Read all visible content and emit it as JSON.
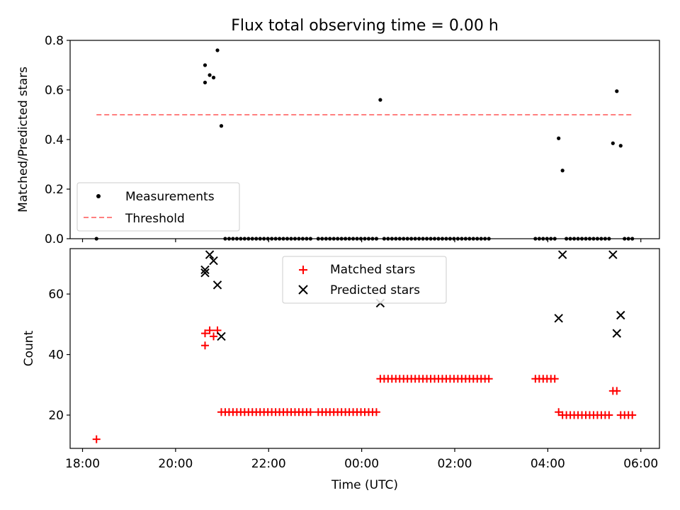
{
  "chart_data": [
    {
      "type": "scatter",
      "title": "Flux total observing time = 0.00 h",
      "ylabel": "Matched/Predicted stars",
      "xlabel": "",
      "ylim": [
        0,
        0.8
      ],
      "yticks": [
        "0.0",
        "0.2",
        "0.4",
        "0.6",
        "0.8"
      ],
      "legend_position": "lower-left",
      "grid": false,
      "series": [
        {
          "name": "Measurements",
          "style": "dot",
          "color": "#000000",
          "points": [
            [
              "18:18",
              0.0
            ],
            [
              "20:38",
              0.7
            ],
            [
              "20:38",
              0.63
            ],
            [
              "20:44",
              0.66
            ],
            [
              "20:49",
              0.65
            ],
            [
              "20:54",
              0.76
            ],
            [
              "20:59",
              0.455
            ],
            [
              "21:04",
              0.0
            ],
            [
              "21:09",
              0.0
            ],
            [
              "21:14",
              0.0
            ],
            [
              "21:19",
              0.0
            ],
            [
              "21:24",
              0.0
            ],
            [
              "21:29",
              0.0
            ],
            [
              "21:34",
              0.0
            ],
            [
              "21:39",
              0.0
            ],
            [
              "21:44",
              0.0
            ],
            [
              "21:49",
              0.0
            ],
            [
              "21:54",
              0.0
            ],
            [
              "21:59",
              0.0
            ],
            [
              "22:04",
              0.0
            ],
            [
              "22:09",
              0.0
            ],
            [
              "22:14",
              0.0
            ],
            [
              "22:19",
              0.0
            ],
            [
              "22:24",
              0.0
            ],
            [
              "22:29",
              0.0
            ],
            [
              "22:34",
              0.0
            ],
            [
              "22:39",
              0.0
            ],
            [
              "22:44",
              0.0
            ],
            [
              "22:49",
              0.0
            ],
            [
              "22:54",
              0.0
            ],
            [
              "23:04",
              0.0
            ],
            [
              "23:09",
              0.0
            ],
            [
              "23:14",
              0.0
            ],
            [
              "23:19",
              0.0
            ],
            [
              "23:24",
              0.0
            ],
            [
              "23:29",
              0.0
            ],
            [
              "23:34",
              0.0
            ],
            [
              "23:39",
              0.0
            ],
            [
              "23:44",
              0.0
            ],
            [
              "23:49",
              0.0
            ],
            [
              "23:54",
              0.0
            ],
            [
              "23:59",
              0.0
            ],
            [
              "00:04",
              0.0
            ],
            [
              "00:09",
              0.0
            ],
            [
              "00:14",
              0.0
            ],
            [
              "00:19",
              0.0
            ],
            [
              "00:24",
              0.56
            ],
            [
              "00:29",
              0.0
            ],
            [
              "00:34",
              0.0
            ],
            [
              "00:39",
              0.0
            ],
            [
              "00:44",
              0.0
            ],
            [
              "00:49",
              0.0
            ],
            [
              "00:54",
              0.0
            ],
            [
              "00:59",
              0.0
            ],
            [
              "01:04",
              0.0
            ],
            [
              "01:09",
              0.0
            ],
            [
              "01:14",
              0.0
            ],
            [
              "01:19",
              0.0
            ],
            [
              "01:24",
              0.0
            ],
            [
              "01:29",
              0.0
            ],
            [
              "01:34",
              0.0
            ],
            [
              "01:39",
              0.0
            ],
            [
              "01:44",
              0.0
            ],
            [
              "01:49",
              0.0
            ],
            [
              "01:54",
              0.0
            ],
            [
              "01:59",
              0.0
            ],
            [
              "02:04",
              0.0
            ],
            [
              "02:09",
              0.0
            ],
            [
              "02:14",
              0.0
            ],
            [
              "02:19",
              0.0
            ],
            [
              "02:24",
              0.0
            ],
            [
              "02:29",
              0.0
            ],
            [
              "02:34",
              0.0
            ],
            [
              "02:39",
              0.0
            ],
            [
              "02:44",
              0.0
            ],
            [
              "03:44",
              0.0
            ],
            [
              "03:49",
              0.0
            ],
            [
              "03:54",
              0.0
            ],
            [
              "03:59",
              0.0
            ],
            [
              "04:04",
              0.0
            ],
            [
              "04:09",
              0.0
            ],
            [
              "04:14",
              0.405
            ],
            [
              "04:19",
              0.275
            ],
            [
              "04:24",
              0.0
            ],
            [
              "04:29",
              0.0
            ],
            [
              "04:34",
              0.0
            ],
            [
              "04:39",
              0.0
            ],
            [
              "04:44",
              0.0
            ],
            [
              "04:49",
              0.0
            ],
            [
              "04:54",
              0.0
            ],
            [
              "04:59",
              0.0
            ],
            [
              "05:04",
              0.0
            ],
            [
              "05:09",
              0.0
            ],
            [
              "05:14",
              0.0
            ],
            [
              "05:19",
              0.0
            ],
            [
              "05:24",
              0.385
            ],
            [
              "05:29",
              0.595
            ],
            [
              "05:34",
              0.375
            ],
            [
              "05:39",
              0.0
            ],
            [
              "05:44",
              0.0
            ],
            [
              "05:49",
              0.0
            ]
          ]
        },
        {
          "name": "Threshold",
          "style": "dashed-line",
          "color": "#ff7f7f",
          "points": [
            [
              "18:18",
              0.5
            ],
            [
              "05:49",
              0.5
            ]
          ]
        }
      ]
    },
    {
      "type": "scatter",
      "title": "",
      "ylabel": "Count",
      "xlabel": "Time (UTC)",
      "ylim": [
        9,
        75
      ],
      "yticks": [
        "20",
        "40",
        "60"
      ],
      "xticks": [
        "18:00",
        "20:00",
        "22:00",
        "00:00",
        "02:00",
        "04:00",
        "06:00"
      ],
      "xlim": [
        "17:44",
        "06:24"
      ],
      "legend_position": "upper-center",
      "grid": false,
      "series": [
        {
          "name": "Matched stars",
          "marker": "plus",
          "color": "#ff0000",
          "points": [
            [
              "18:18",
              12
            ],
            [
              "20:38",
              47
            ],
            [
              "20:38",
              43
            ],
            [
              "20:44",
              48
            ],
            [
              "20:49",
              46
            ],
            [
              "20:54",
              48
            ],
            [
              "20:59",
              21
            ],
            [
              "21:04",
              21
            ],
            [
              "21:09",
              21
            ],
            [
              "21:14",
              21
            ],
            [
              "21:19",
              21
            ],
            [
              "21:24",
              21
            ],
            [
              "21:29",
              21
            ],
            [
              "21:34",
              21
            ],
            [
              "21:39",
              21
            ],
            [
              "21:44",
              21
            ],
            [
              "21:49",
              21
            ],
            [
              "21:54",
              21
            ],
            [
              "21:59",
              21
            ],
            [
              "22:04",
              21
            ],
            [
              "22:09",
              21
            ],
            [
              "22:14",
              21
            ],
            [
              "22:19",
              21
            ],
            [
              "22:24",
              21
            ],
            [
              "22:29",
              21
            ],
            [
              "22:34",
              21
            ],
            [
              "22:39",
              21
            ],
            [
              "22:44",
              21
            ],
            [
              "22:49",
              21
            ],
            [
              "22:54",
              21
            ],
            [
              "23:04",
              21
            ],
            [
              "23:09",
              21
            ],
            [
              "23:14",
              21
            ],
            [
              "23:19",
              21
            ],
            [
              "23:24",
              21
            ],
            [
              "23:29",
              21
            ],
            [
              "23:34",
              21
            ],
            [
              "23:39",
              21
            ],
            [
              "23:44",
              21
            ],
            [
              "23:49",
              21
            ],
            [
              "23:54",
              21
            ],
            [
              "23:59",
              21
            ],
            [
              "00:04",
              21
            ],
            [
              "00:09",
              21
            ],
            [
              "00:14",
              21
            ],
            [
              "00:19",
              21
            ],
            [
              "00:24",
              32
            ],
            [
              "00:29",
              32
            ],
            [
              "00:34",
              32
            ],
            [
              "00:39",
              32
            ],
            [
              "00:44",
              32
            ],
            [
              "00:49",
              32
            ],
            [
              "00:54",
              32
            ],
            [
              "00:59",
              32
            ],
            [
              "01:04",
              32
            ],
            [
              "01:09",
              32
            ],
            [
              "01:14",
              32
            ],
            [
              "01:19",
              32
            ],
            [
              "01:24",
              32
            ],
            [
              "01:29",
              32
            ],
            [
              "01:34",
              32
            ],
            [
              "01:39",
              32
            ],
            [
              "01:44",
              32
            ],
            [
              "01:49",
              32
            ],
            [
              "01:54",
              32
            ],
            [
              "01:59",
              32
            ],
            [
              "02:04",
              32
            ],
            [
              "02:09",
              32
            ],
            [
              "02:14",
              32
            ],
            [
              "02:19",
              32
            ],
            [
              "02:24",
              32
            ],
            [
              "02:29",
              32
            ],
            [
              "02:34",
              32
            ],
            [
              "02:39",
              32
            ],
            [
              "02:44",
              32
            ],
            [
              "03:44",
              32
            ],
            [
              "03:49",
              32
            ],
            [
              "03:54",
              32
            ],
            [
              "03:59",
              32
            ],
            [
              "04:04",
              32
            ],
            [
              "04:09",
              32
            ],
            [
              "04:14",
              21
            ],
            [
              "04:19",
              20
            ],
            [
              "04:24",
              20
            ],
            [
              "04:29",
              20
            ],
            [
              "04:34",
              20
            ],
            [
              "04:39",
              20
            ],
            [
              "04:44",
              20
            ],
            [
              "04:49",
              20
            ],
            [
              "04:54",
              20
            ],
            [
              "04:59",
              20
            ],
            [
              "05:04",
              20
            ],
            [
              "05:09",
              20
            ],
            [
              "05:14",
              20
            ],
            [
              "05:19",
              20
            ],
            [
              "05:24",
              28
            ],
            [
              "05:29",
              28
            ],
            [
              "05:34",
              20
            ],
            [
              "05:39",
              20
            ],
            [
              "05:44",
              20
            ],
            [
              "05:49",
              20
            ]
          ]
        },
        {
          "name": "Predicted stars",
          "marker": "x",
          "color": "#000000",
          "points": [
            [
              "20:38",
              68
            ],
            [
              "20:38",
              67
            ],
            [
              "20:44",
              73
            ],
            [
              "20:49",
              71
            ],
            [
              "20:54",
              63
            ],
            [
              "20:59",
              46
            ],
            [
              "00:24",
              57
            ],
            [
              "04:14",
              52
            ],
            [
              "04:19",
              73
            ],
            [
              "05:24",
              73
            ],
            [
              "05:29",
              47
            ],
            [
              "05:34",
              53
            ]
          ]
        }
      ]
    }
  ]
}
